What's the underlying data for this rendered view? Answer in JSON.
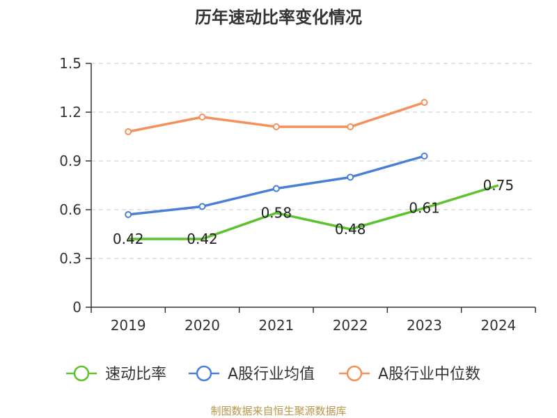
{
  "chart_data": {
    "type": "line",
    "title": "历年速动比率变化情况",
    "categories": [
      "2019",
      "2020",
      "2021",
      "2022",
      "2023",
      "2024"
    ],
    "ylim": [
      0,
      1.5
    ],
    "yticks": [
      "0",
      "0.3",
      "0.6",
      "0.9",
      "1.2",
      "1.5"
    ],
    "grid": true,
    "legend_position": "bottom",
    "series": [
      {
        "name": "速动比率",
        "color": "#5cc22e",
        "values": [
          0.42,
          0.42,
          0.58,
          0.48,
          0.61,
          0.75
        ],
        "labels": [
          "0.42",
          "0.42",
          "0.58",
          "0.48",
          "0.61",
          "0.75"
        ]
      },
      {
        "name": "A股行业均值",
        "color": "#4a7fd8",
        "values": [
          0.57,
          0.62,
          0.73,
          0.8,
          0.93,
          null
        ]
      },
      {
        "name": "A股行业中位数",
        "color": "#f5905a",
        "values": [
          1.08,
          1.17,
          1.11,
          1.11,
          1.26,
          null
        ]
      }
    ],
    "source": "制图数据来自恒生聚源数据库"
  }
}
